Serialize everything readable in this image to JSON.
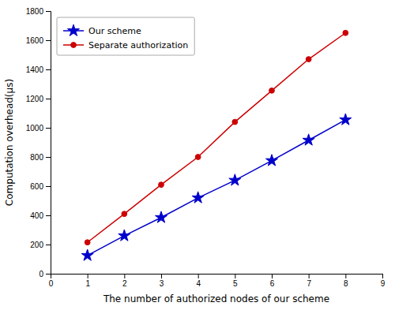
{
  "chart_data": {
    "type": "line",
    "x": [
      1,
      2,
      3,
      4,
      5,
      6,
      7,
      8
    ],
    "series": [
      {
        "name": "Our scheme",
        "color": "#0000cc",
        "marker": "star",
        "values": [
          125,
          260,
          385,
          520,
          640,
          775,
          915,
          1055
        ]
      },
      {
        "name": "Separate authorization",
        "color": "#cc0000",
        "marker": "circle",
        "values": [
          215,
          410,
          610,
          800,
          1040,
          1255,
          1470,
          1650
        ]
      }
    ],
    "xlabel": "The number of authorized nodes of our scheme",
    "ylabel": "Computation overhead(μs)",
    "xlim": [
      0,
      9
    ],
    "ylim": [
      0,
      1800
    ],
    "xticks": [
      0,
      1,
      2,
      3,
      4,
      5,
      6,
      7,
      8,
      9
    ],
    "yticks": [
      0,
      200,
      400,
      600,
      800,
      1000,
      1200,
      1400,
      1600,
      1800
    ],
    "legend": "upper left",
    "grid": false
  }
}
